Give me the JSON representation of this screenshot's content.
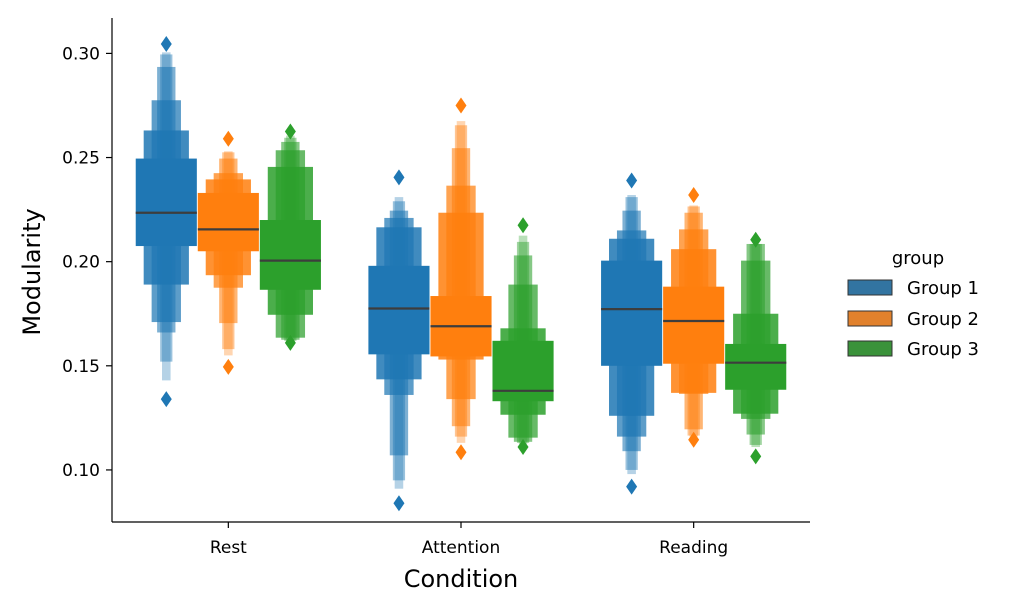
{
  "chart_data": {
    "type": "boxen",
    "xlabel": "Condition",
    "ylabel": "Modularity",
    "categories": [
      "Rest",
      "Attention",
      "Reading"
    ],
    "ylim": [
      0.075,
      0.317
    ],
    "yticks": [
      0.1,
      0.15,
      0.2,
      0.25,
      0.3
    ],
    "ytick_labels": [
      "0.10",
      "0.15",
      "0.20",
      "0.25",
      "0.30"
    ],
    "grid": false,
    "legend": {
      "title": "group",
      "placement": "right",
      "entries": [
        "Group 1",
        "Group 2",
        "Group 3"
      ]
    },
    "series": [
      {
        "name": "Group 1",
        "color": "#1f77b4",
        "groups": [
          {
            "category": "Rest",
            "median": 0.2235,
            "levels": [
              [
                0.2075,
                0.2495
              ],
              [
                0.189,
                0.263
              ],
              [
                0.171,
                0.2775
              ],
              [
                0.166,
                0.2935
              ],
              [
                0.152,
                0.2995
              ],
              [
                0.143,
                0.3005
              ]
            ],
            "outliers": [
              0.3045,
              0.134
            ]
          },
          {
            "category": "Attention",
            "median": 0.1775,
            "levels": [
              [
                0.1555,
                0.198
              ],
              [
                0.1435,
                0.2165
              ],
              [
                0.136,
                0.221
              ],
              [
                0.107,
                0.2245
              ],
              [
                0.095,
                0.229
              ],
              [
                0.091,
                0.231
              ]
            ],
            "outliers": [
              0.2405,
              0.084
            ]
          },
          {
            "category": "Reading",
            "median": 0.1772,
            "levels": [
              [
                0.15,
                0.2005
              ],
              [
                0.126,
                0.211
              ],
              [
                0.116,
                0.215
              ],
              [
                0.109,
                0.2245
              ],
              [
                0.1,
                0.231
              ],
              [
                0.098,
                0.232
              ]
            ],
            "outliers": [
              0.239,
              0.092
            ]
          }
        ]
      },
      {
        "name": "Group 2",
        "color": "#ff7f0e",
        "groups": [
          {
            "category": "Rest",
            "median": 0.2155,
            "levels": [
              [
                0.205,
                0.233
              ],
              [
                0.1935,
                0.2395
              ],
              [
                0.1875,
                0.2425
              ],
              [
                0.1705,
                0.2495
              ],
              [
                0.158,
                0.2525
              ],
              [
                0.155,
                0.253
              ]
            ],
            "outliers": [
              0.259,
              0.1495
            ]
          },
          {
            "category": "Attention",
            "median": 0.169,
            "levels": [
              [
                0.1545,
                0.1835
              ],
              [
                0.153,
                0.2235
              ],
              [
                0.134,
                0.2365
              ],
              [
                0.121,
                0.2545
              ],
              [
                0.116,
                0.2655
              ],
              [
                0.113,
                0.2675
              ]
            ],
            "outliers": [
              0.275,
              0.1085
            ]
          },
          {
            "category": "Reading",
            "median": 0.1715,
            "levels": [
              [
                0.151,
                0.188
              ],
              [
                0.137,
                0.206
              ],
              [
                0.1365,
                0.2155
              ],
              [
                0.1195,
                0.2235
              ],
              [
                0.1165,
                0.2265
              ],
              [
                0.116,
                0.227
              ]
            ],
            "outliers": [
              0.232,
              0.1145
            ]
          }
        ]
      },
      {
        "name": "Group 3",
        "color": "#2ca02c",
        "groups": [
          {
            "category": "Rest",
            "median": 0.2005,
            "levels": [
              [
                0.1865,
                0.22
              ],
              [
                0.1745,
                0.2455
              ],
              [
                0.1635,
                0.2535
              ],
              [
                0.1625,
                0.2575
              ],
              [
                0.162,
                0.2595
              ],
              [
                0.1615,
                0.2605
              ]
            ],
            "outliers": [
              0.2625,
              0.161
            ]
          },
          {
            "category": "Attention",
            "median": 0.138,
            "levels": [
              [
                0.133,
                0.162
              ],
              [
                0.1265,
                0.168
              ],
              [
                0.1155,
                0.189
              ],
              [
                0.1135,
                0.203
              ],
              [
                0.113,
                0.2095
              ],
              [
                0.1125,
                0.2125
              ]
            ],
            "outliers": [
              0.2175,
              0.111
            ]
          },
          {
            "category": "Reading",
            "median": 0.1515,
            "levels": [
              [
                0.1385,
                0.1605
              ],
              [
                0.127,
                0.175
              ],
              [
                0.1245,
                0.2005
              ],
              [
                0.117,
                0.2085
              ],
              [
                0.112,
                0.2085
              ],
              [
                0.111,
                0.2085
              ]
            ],
            "outliers": [
              0.2105,
              0.1065
            ]
          }
        ]
      }
    ]
  }
}
